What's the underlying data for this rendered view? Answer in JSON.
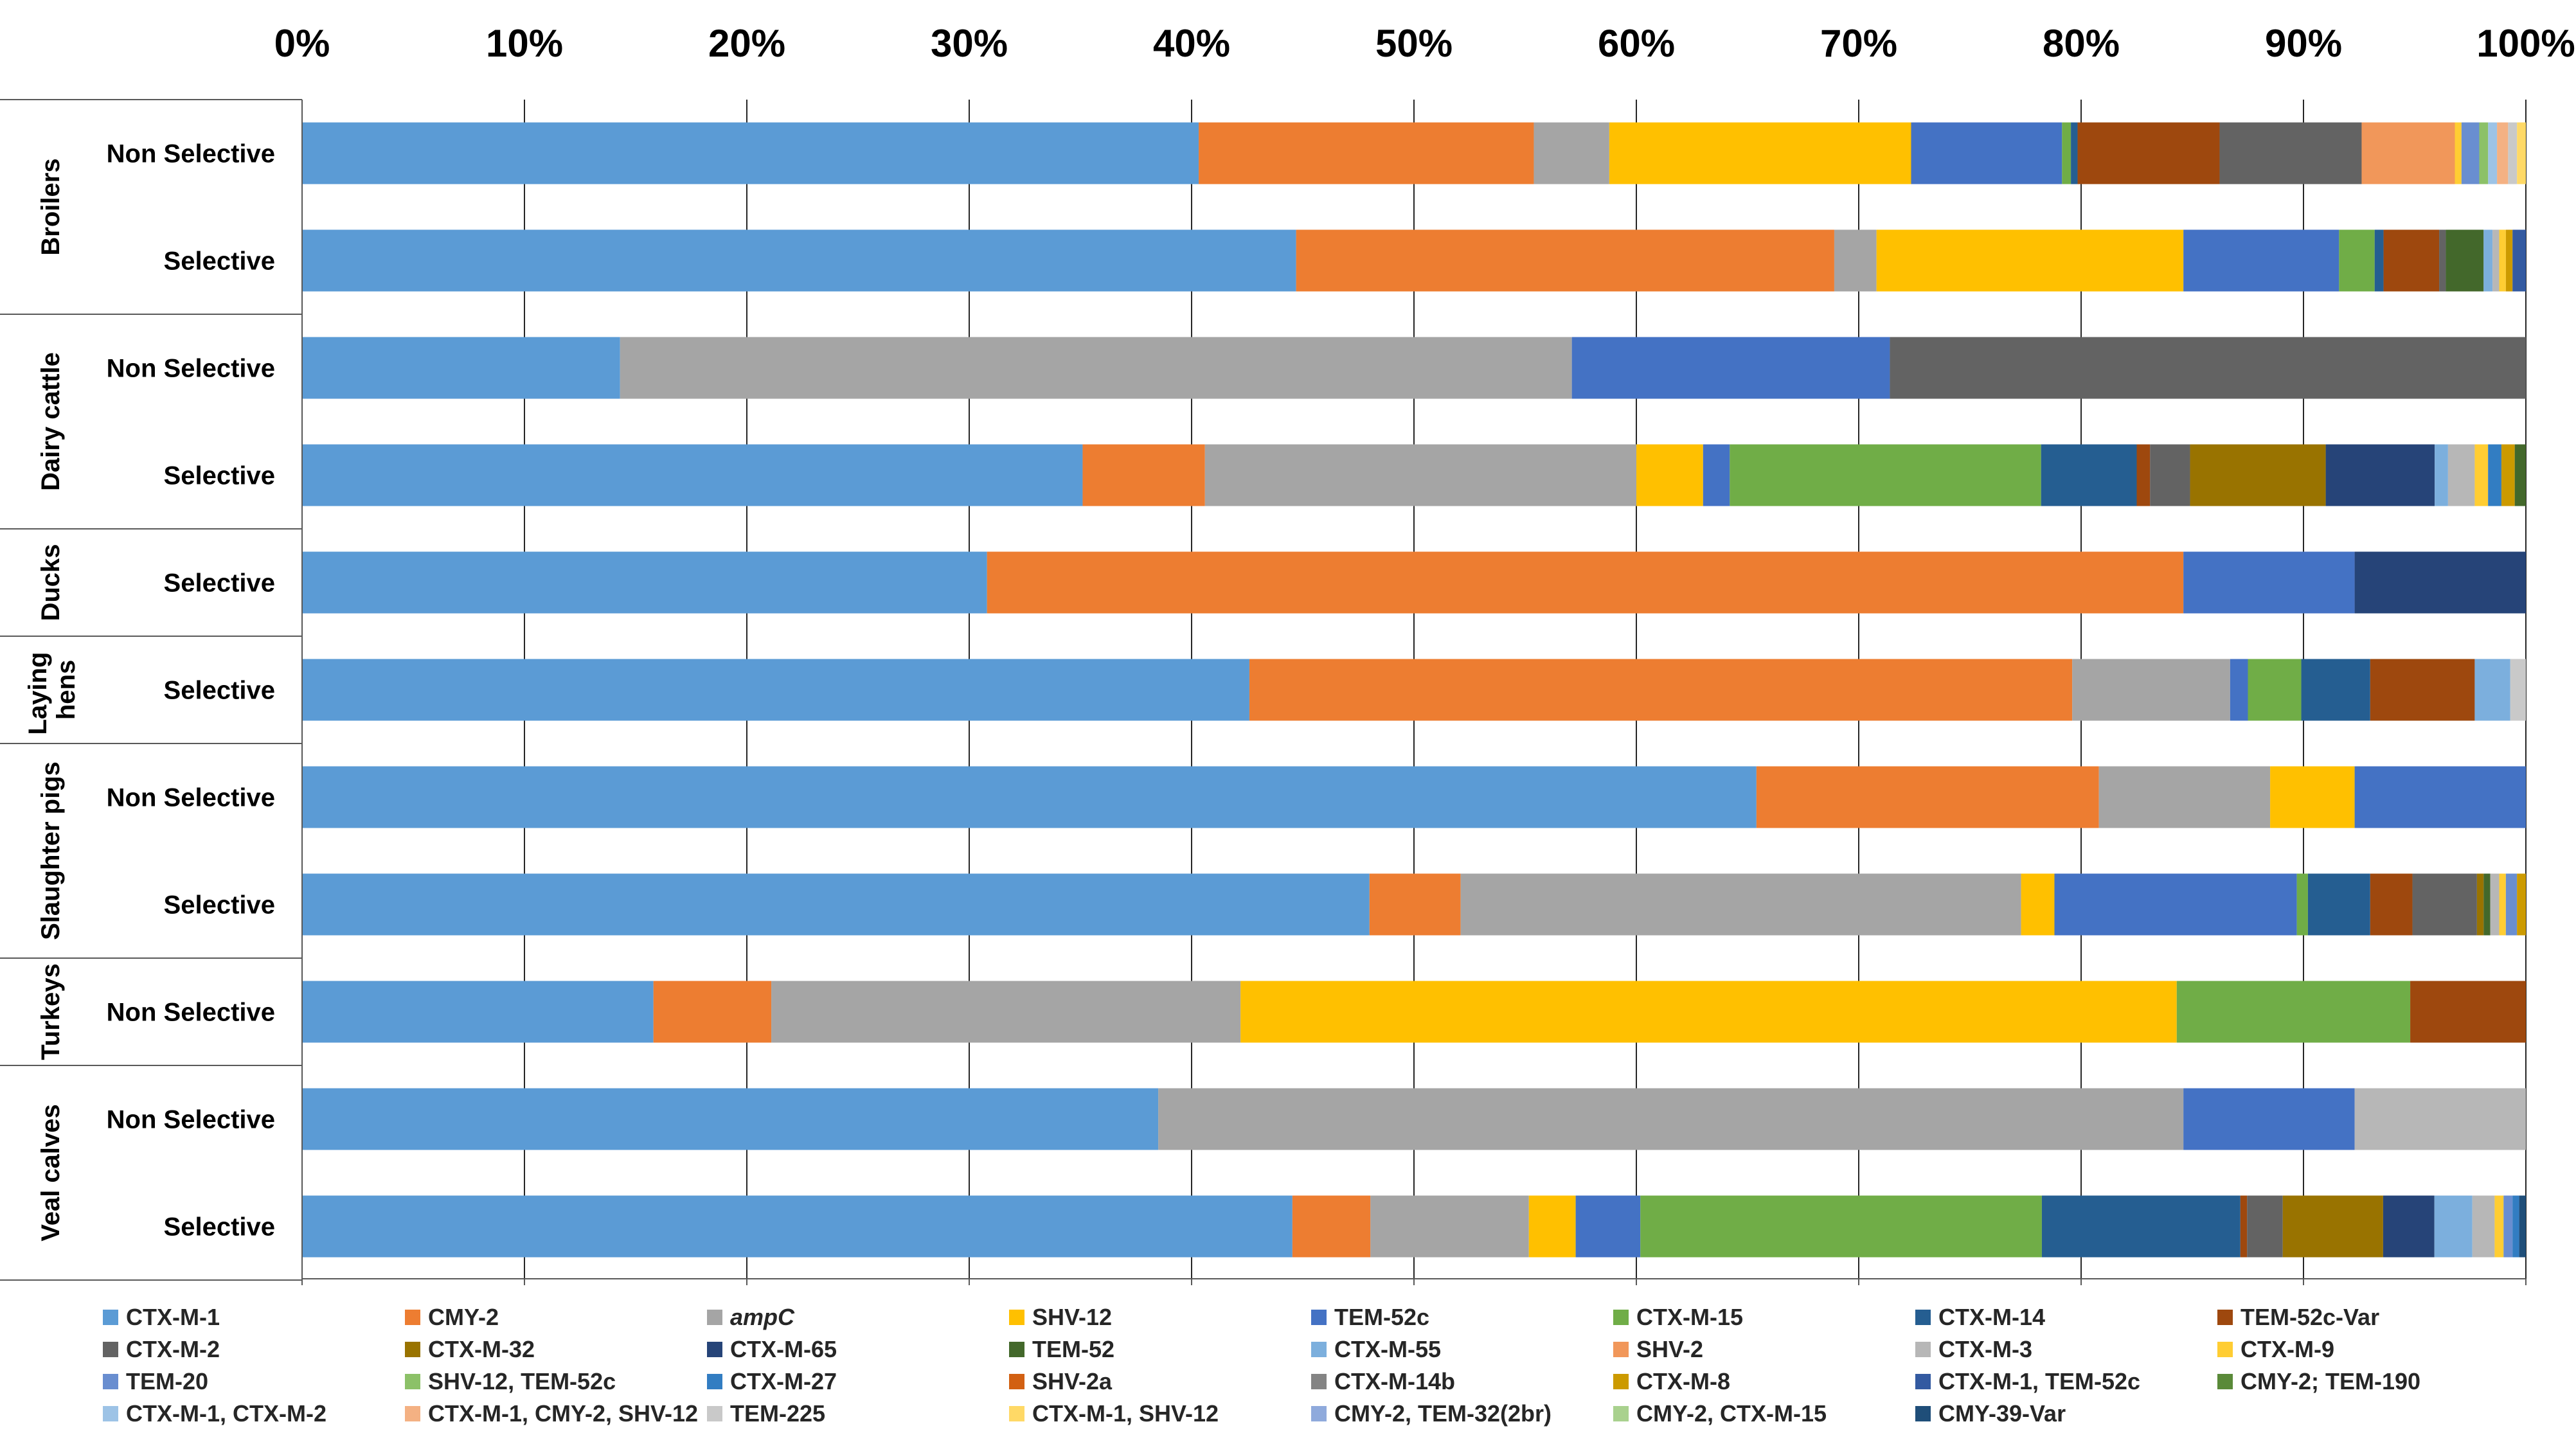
{
  "chart_data": {
    "type": "bar",
    "orientation": "horizontal",
    "stacked": "100%",
    "title": "",
    "xlim": [
      0,
      100
    ],
    "x_ticks": [
      "0%",
      "10%",
      "20%",
      "30%",
      "40%",
      "50%",
      "60%",
      "70%",
      "80%",
      "90%",
      "100%"
    ],
    "grid": true,
    "legend_position": "bottom",
    "series": [
      {
        "name": "CTX-M-1",
        "color": "#5B9BD5"
      },
      {
        "name": "CMY-2",
        "color": "#ED7D31"
      },
      {
        "name": "ampC",
        "color": "#A5A5A5",
        "italic": true
      },
      {
        "name": "SHV-12",
        "color": "#FFC000"
      },
      {
        "name": "TEM-52c",
        "color": "#4472C4"
      },
      {
        "name": "CTX-M-15",
        "color": "#70AD47"
      },
      {
        "name": "CTX-M-14",
        "color": "#255E91"
      },
      {
        "name": "TEM-52c-Var",
        "color": "#9E480E"
      },
      {
        "name": "CTX-M-2",
        "color": "#636363"
      },
      {
        "name": "CTX-M-32",
        "color": "#997300"
      },
      {
        "name": "CTX-M-65",
        "color": "#264478"
      },
      {
        "name": "TEM-52",
        "color": "#43682B"
      },
      {
        "name": "CTX-M-55",
        "color": "#7CAFDD"
      },
      {
        "name": "SHV-2",
        "color": "#F1975A"
      },
      {
        "name": "CTX-M-3",
        "color": "#B7B7B7"
      },
      {
        "name": "CTX-M-9",
        "color": "#FFCD33"
      },
      {
        "name": "TEM-20",
        "color": "#698ED0"
      },
      {
        "name": "SHV-12, TEM-52c",
        "color": "#8CC168"
      },
      {
        "name": "CTX-M-27",
        "color": "#327DC2"
      },
      {
        "name": "SHV-2a",
        "color": "#D26012"
      },
      {
        "name": "CTX-M-14b",
        "color": "#848484"
      },
      {
        "name": "CTX-M-8",
        "color": "#CC9A00"
      },
      {
        "name": "CTX-M-1, TEM-52c",
        "color": "#335AA1"
      },
      {
        "name": "CMY-2; TEM-190",
        "color": "#5A8A39"
      },
      {
        "name": "CTX-M-1, CTX-M-2",
        "color": "#9DC3E6"
      },
      {
        "name": "CTX-M-1, CMY-2, SHV-12",
        "color": "#F4B183"
      },
      {
        "name": "TEM-225",
        "color": "#C9C9C9"
      },
      {
        "name": "CTX-M-1, SHV-12",
        "color": "#FFD966"
      },
      {
        "name": "CMY-2, TEM-32(2br)",
        "color": "#8FAADC"
      },
      {
        "name": "CMY-2, CTX-M-15",
        "color": "#A9D18E"
      },
      {
        "name": "CMY-39-Var",
        "color": "#1F4E79"
      }
    ],
    "groups": [
      {
        "name": "Broilers",
        "rows": [
          {
            "label": "Non Selective",
            "segments": [
              {
                "s": "CTX-M-1",
                "v": 40.4
              },
              {
                "s": "CMY-2",
                "v": 15.1
              },
              {
                "s": "ampC",
                "v": 3.4
              },
              {
                "s": "SHV-12",
                "v": 13.6
              },
              {
                "s": "TEM-52c",
                "v": 6.8
              },
              {
                "s": "CTX-M-15",
                "v": 0.4
              },
              {
                "s": "CTX-M-14",
                "v": 0.3
              },
              {
                "s": "TEM-52c-Var",
                "v": 6.4
              },
              {
                "s": "CTX-M-2",
                "v": 6.4
              },
              {
                "s": "SHV-2",
                "v": 4.2
              },
              {
                "s": "CTX-M-9",
                "v": 0.3
              },
              {
                "s": "TEM-20",
                "v": 0.8
              },
              {
                "s": "SHV-12, TEM-52c",
                "v": 0.4
              },
              {
                "s": "CTX-M-1, CTX-M-2",
                "v": 0.4
              },
              {
                "s": "CTX-M-1, CMY-2, SHV-12",
                "v": 0.5
              },
              {
                "s": "TEM-225",
                "v": 0.4
              },
              {
                "s": "CTX-M-1, SHV-12",
                "v": 0.4
              }
            ]
          },
          {
            "label": "Selective",
            "segments": [
              {
                "s": "CTX-M-1",
                "v": 44.7
              },
              {
                "s": "CMY-2",
                "v": 24.2
              },
              {
                "s": "ampC",
                "v": 1.9
              },
              {
                "s": "SHV-12",
                "v": 13.8
              },
              {
                "s": "TEM-52c",
                "v": 7.0
              },
              {
                "s": "CTX-M-15",
                "v": 1.6
              },
              {
                "s": "CTX-M-14",
                "v": 0.4
              },
              {
                "s": "TEM-52c-Var",
                "v": 2.5
              },
              {
                "s": "CTX-M-2",
                "v": 0.3
              },
              {
                "s": "TEM-52",
                "v": 1.7
              },
              {
                "s": "CTX-M-55",
                "v": 0.4
              },
              {
                "s": "CTX-M-3",
                "v": 0.3
              },
              {
                "s": "CTX-M-9",
                "v": 0.3
              },
              {
                "s": "CTX-M-8",
                "v": 0.3
              },
              {
                "s": "CTX-M-1, TEM-52c",
                "v": 0.6
              }
            ]
          }
        ]
      },
      {
        "name": "Dairy cattle",
        "rows": [
          {
            "label": "Non Selective",
            "segments": [
              {
                "s": "CTX-M-1",
                "v": 14.3
              },
              {
                "s": "ampC",
                "v": 42.8
              },
              {
                "s": "TEM-52c",
                "v": 14.3
              },
              {
                "s": "CTX-M-2",
                "v": 28.6
              }
            ]
          },
          {
            "label": "Selective",
            "segments": [
              {
                "s": "CTX-M-1",
                "v": 35.1
              },
              {
                "s": "CMY-2",
                "v": 5.5
              },
              {
                "s": "ampC",
                "v": 19.4
              },
              {
                "s": "SHV-12",
                "v": 3.0
              },
              {
                "s": "TEM-52c",
                "v": 1.2
              },
              {
                "s": "CTX-M-15",
                "v": 14.0
              },
              {
                "s": "CTX-M-14",
                "v": 4.3
              },
              {
                "s": "TEM-52c-Var",
                "v": 0.6
              },
              {
                "s": "CTX-M-2",
                "v": 1.8
              },
              {
                "s": "CTX-M-32",
                "v": 6.1
              },
              {
                "s": "CTX-M-65",
                "v": 4.9
              },
              {
                "s": "CTX-M-55",
                "v": 0.6
              },
              {
                "s": "CTX-M-3",
                "v": 1.2
              },
              {
                "s": "CTX-M-9",
                "v": 0.6
              },
              {
                "s": "CTX-M-27",
                "v": 0.6
              },
              {
                "s": "CTX-M-8",
                "v": 0.6
              },
              {
                "s": "TEM-52",
                "v": 0.5
              }
            ]
          }
        ]
      },
      {
        "name": "Ducks",
        "rows": [
          {
            "label": "Selective",
            "segments": [
              {
                "s": "CTX-M-1",
                "v": 30.8
              },
              {
                "s": "CMY-2",
                "v": 53.8
              },
              {
                "s": "TEM-52c",
                "v": 7.7
              },
              {
                "s": "CTX-M-65",
                "v": 7.7
              }
            ]
          }
        ]
      },
      {
        "name": "Laying hens",
        "rows": [
          {
            "label": "Selective",
            "segments": [
              {
                "s": "CTX-M-1",
                "v": 42.6
              },
              {
                "s": "CMY-2",
                "v": 37.0
              },
              {
                "s": "ampC",
                "v": 7.1
              },
              {
                "s": "TEM-52c",
                "v": 0.8
              },
              {
                "s": "CTX-M-15",
                "v": 2.4
              },
              {
                "s": "CTX-M-14",
                "v": 3.1
              },
              {
                "s": "TEM-52c-Var",
                "v": 4.7
              },
              {
                "s": "CTX-M-55",
                "v": 1.6
              },
              {
                "s": "TEM-225",
                "v": 0.7
              }
            ]
          }
        ]
      },
      {
        "name": "Slaughter pigs",
        "rows": [
          {
            "label": "Non Selective",
            "segments": [
              {
                "s": "CTX-M-1",
                "v": 65.4
              },
              {
                "s": "CMY-2",
                "v": 15.4
              },
              {
                "s": "ampC",
                "v": 7.7
              },
              {
                "s": "SHV-12",
                "v": 3.8
              },
              {
                "s": "TEM-52c",
                "v": 7.7
              }
            ]
          },
          {
            "label": "Selective",
            "segments": [
              {
                "s": "CTX-M-1",
                "v": 48.0
              },
              {
                "s": "CMY-2",
                "v": 4.1
              },
              {
                "s": "ampC",
                "v": 25.2
              },
              {
                "s": "SHV-12",
                "v": 1.5
              },
              {
                "s": "TEM-52c",
                "v": 10.9
              },
              {
                "s": "CTX-M-15",
                "v": 0.5
              },
              {
                "s": "CTX-M-14",
                "v": 2.8
              },
              {
                "s": "TEM-52c-Var",
                "v": 1.9
              },
              {
                "s": "CTX-M-2",
                "v": 2.9
              },
              {
                "s": "CTX-M-32",
                "v": 0.3
              },
              {
                "s": "TEM-52",
                "v": 0.3
              },
              {
                "s": "CTX-M-3",
                "v": 0.4
              },
              {
                "s": "CTX-M-9",
                "v": 0.3
              },
              {
                "s": "TEM-20",
                "v": 0.5
              },
              {
                "s": "CTX-M-8",
                "v": 0.4
              }
            ]
          }
        ]
      },
      {
        "name": "Turkeys",
        "rows": [
          {
            "label": "Non Selective",
            "segments": [
              {
                "s": "CTX-M-1",
                "v": 15.8
              },
              {
                "s": "CMY-2",
                "v": 5.3
              },
              {
                "s": "ampC",
                "v": 21.1
              },
              {
                "s": "SHV-12",
                "v": 42.1
              },
              {
                "s": "CTX-M-15",
                "v": 10.5
              },
              {
                "s": "TEM-52c-Var",
                "v": 5.2
              }
            ]
          }
        ]
      },
      {
        "name": "Veal calves",
        "rows": [
          {
            "label": "Non Selective",
            "segments": [
              {
                "s": "CTX-M-1",
                "v": 38.5
              },
              {
                "s": "ampC",
                "v": 46.1
              },
              {
                "s": "TEM-52c",
                "v": 7.7
              },
              {
                "s": "CTX-M-3",
                "v": 7.7
              }
            ]
          },
          {
            "label": "Selective",
            "segments": [
              {
                "s": "CTX-M-1",
                "v": 44.4
              },
              {
                "s": "CMY-2",
                "v": 3.5
              },
              {
                "s": "ampC",
                "v": 7.1
              },
              {
                "s": "SHV-12",
                "v": 2.1
              },
              {
                "s": "TEM-52c",
                "v": 2.9
              },
              {
                "s": "CTX-M-15",
                "v": 18.0
              },
              {
                "s": "CTX-M-14",
                "v": 8.9
              },
              {
                "s": "TEM-52c-Var",
                "v": 0.3
              },
              {
                "s": "CTX-M-2",
                "v": 1.6
              },
              {
                "s": "CTX-M-32",
                "v": 4.5
              },
              {
                "s": "CTX-M-65",
                "v": 2.3
              },
              {
                "s": "CTX-M-55",
                "v": 1.7
              },
              {
                "s": "CTX-M-3",
                "v": 1.0
              },
              {
                "s": "CTX-M-9",
                "v": 0.4
              },
              {
                "s": "TEM-20",
                "v": 0.4
              },
              {
                "s": "CTX-M-27",
                "v": 0.3
              },
              {
                "s": "CMY-39-Var",
                "v": 0.3
              }
            ]
          }
        ]
      }
    ]
  }
}
